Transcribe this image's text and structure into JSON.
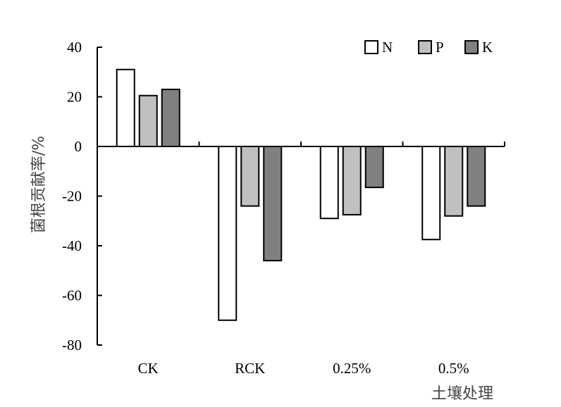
{
  "chart_data": {
    "type": "bar",
    "categories": [
      "CK",
      "RCK",
      "0.25%",
      "0.5%"
    ],
    "series": [
      {
        "name": "N",
        "values": [
          31,
          -70,
          -29,
          -37.5
        ],
        "color": "#ffffff"
      },
      {
        "name": "P",
        "values": [
          20.5,
          -24,
          -27.5,
          -28
        ],
        "color": "#c0c0c0"
      },
      {
        "name": "K",
        "values": [
          23,
          -46,
          -16.5,
          -24
        ],
        "color": "#808080"
      }
    ],
    "title": "",
    "xlabel": "土壤处理",
    "ylabel": "菌根贡献率/%",
    "ylim": [
      -80,
      40
    ],
    "yticks": [
      40,
      20,
      0,
      -20,
      -40,
      -60,
      -80
    ],
    "ytick_labels": [
      "40",
      "20",
      "0",
      "-20",
      "-40",
      "-60",
      "-80"
    ],
    "grid": false,
    "legend_position": "top-right",
    "bar_edge_color": "#000000"
  }
}
